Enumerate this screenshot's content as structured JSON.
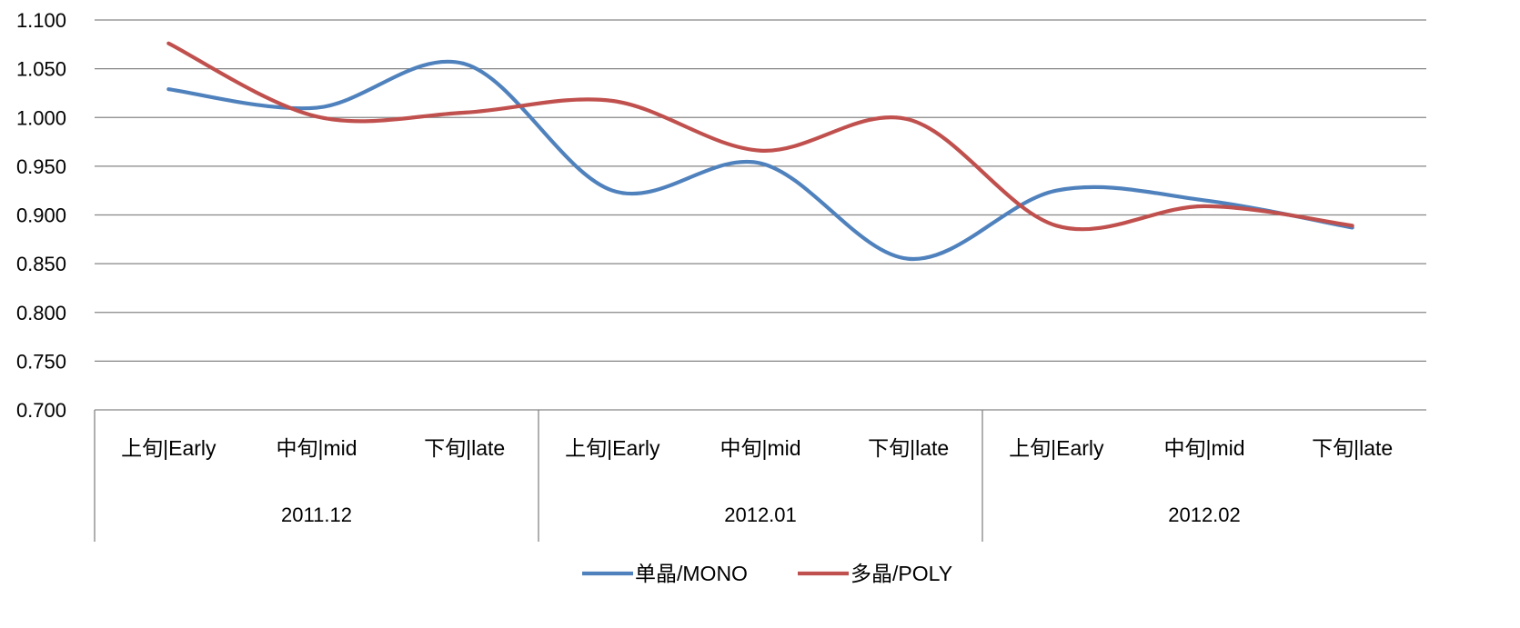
{
  "chart_data": {
    "type": "line",
    "title": "",
    "xlabel": "",
    "ylabel": "",
    "ylim": [
      0.7,
      1.1
    ],
    "yticks": [
      "0.700",
      "0.750",
      "0.800",
      "0.850",
      "0.900",
      "0.950",
      "1.000",
      "1.050",
      "1.100"
    ],
    "categories": [
      "上旬|Early",
      "中旬|mid",
      "下旬|late",
      "上旬|Early",
      "中旬|mid",
      "下旬|late",
      "上旬|Early",
      "中旬|mid",
      "下旬|late"
    ],
    "groups": [
      {
        "label": "2011.12",
        "span": 3
      },
      {
        "label": "2012.01",
        "span": 3
      },
      {
        "label": "2012.02",
        "span": 3
      }
    ],
    "grid": true,
    "smooth": true,
    "legend_position": "bottom",
    "series": [
      {
        "name": "单晶/MONO",
        "color": "#4f81bd",
        "values": [
          1.029,
          1.01,
          1.055,
          0.925,
          0.953,
          0.855,
          0.925,
          0.915,
          0.887
        ]
      },
      {
        "name": "多晶/POLY",
        "color": "#c0504d",
        "values": [
          1.076,
          1.001,
          1.005,
          1.017,
          0.966,
          0.998,
          0.889,
          0.909,
          0.889
        ]
      }
    ]
  }
}
